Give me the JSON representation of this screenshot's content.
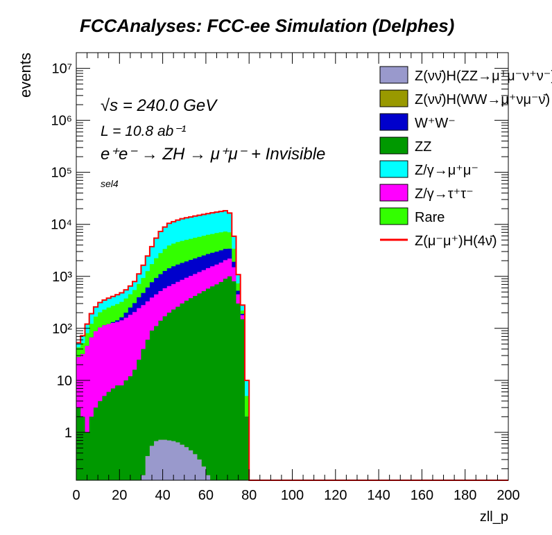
{
  "chart_data": {
    "type": "area",
    "title": "FCCAnalyses: FCC-ee Simulation (Delphes)",
    "xlabel": "zll_p",
    "ylabel": "events",
    "xlim": [
      0,
      200
    ],
    "ylim_log": [
      0.12,
      20000000
    ],
    "log_y": true,
    "x_ticks": [
      "0",
      "20",
      "40",
      "60",
      "80",
      "100",
      "120",
      "140",
      "160",
      "180",
      "200"
    ],
    "y_ticks": [
      "1",
      "10",
      "10²",
      "10³",
      "10⁴",
      "10⁵",
      "10⁶",
      "10⁷"
    ],
    "annotations": {
      "sqrt_s": "√s = 240.0 GeV",
      "lumi": "L = 10.8 ab⁻¹",
      "process": "e⁺e⁻ → ZH → μ⁺μ⁻ + Invisible",
      "selection": "sel4"
    },
    "x": [
      0,
      2,
      4,
      6,
      8,
      10,
      12,
      14,
      16,
      18,
      20,
      22,
      24,
      26,
      28,
      30,
      32,
      34,
      36,
      38,
      40,
      42,
      44,
      46,
      48,
      50,
      52,
      54,
      56,
      58,
      60,
      62,
      64,
      66,
      68,
      70,
      72,
      74,
      76,
      78,
      80,
      200
    ],
    "series_stack_order": "bottom to top",
    "series": [
      {
        "name": "Z(νν̄)H(ZZ→μ⁺μ⁻ν⁺ν⁻)",
        "color": "#9999cc",
        "values": [
          0,
          0,
          0,
          0,
          0,
          0,
          0,
          0,
          0,
          0,
          0,
          0,
          0,
          0,
          0,
          0.15,
          0.35,
          0.55,
          0.68,
          0.72,
          0.72,
          0.7,
          0.68,
          0.64,
          0.58,
          0.52,
          0.45,
          0.38,
          0.3,
          0.22,
          0.15,
          0,
          0,
          0,
          0,
          0,
          0,
          0,
          0,
          0,
          0,
          0
        ]
      },
      {
        "name": "Z(νν̄)H(WW→μ⁺νμ⁻ν̄)",
        "color": "#999900",
        "values": [
          0,
          0,
          0,
          0,
          0,
          0,
          0,
          0,
          0,
          0,
          0,
          0,
          0,
          0,
          0,
          0,
          0,
          0,
          0,
          0,
          0,
          0,
          0,
          0,
          0,
          0,
          0,
          0,
          0,
          0,
          0,
          0,
          0,
          0,
          0,
          0,
          0,
          0,
          0,
          0,
          0,
          0
        ]
      },
      {
        "name": "ZZ",
        "color": "#009900",
        "values": [
          3,
          2,
          1,
          2,
          3,
          4,
          5,
          6,
          7,
          8,
          8,
          10,
          12,
          16,
          25,
          40,
          60,
          90,
          110,
          140,
          170,
          200,
          230,
          260,
          300,
          340,
          380,
          420,
          470,
          520,
          580,
          640,
          700,
          780,
          900,
          1000,
          800,
          300,
          150,
          2,
          0,
          0
        ]
      },
      {
        "name": "Z/γ→τ⁺τ⁻",
        "color": "#ff00ff",
        "values": [
          25,
          30,
          45,
          65,
          85,
          100,
          110,
          115,
          120,
          125,
          135,
          150,
          170,
          190,
          220,
          240,
          270,
          300,
          340,
          380,
          420,
          450,
          480,
          520,
          560,
          600,
          640,
          690,
          740,
          800,
          860,
          920,
          990,
          1060,
          1150,
          1200,
          700,
          150,
          30,
          0,
          0,
          0
        ]
      },
      {
        "name": "W⁺W⁻",
        "color": "#0000cc",
        "values": [
          0,
          0,
          0,
          0,
          0,
          0,
          0,
          0,
          5,
          10,
          20,
          40,
          70,
          100,
          150,
          200,
          280,
          380,
          480,
          580,
          680,
          780,
          850,
          900,
          950,
          1000,
          1050,
          1100,
          1150,
          1200,
          1250,
          1280,
          1300,
          1320,
          1330,
          1200,
          400,
          80,
          10,
          0,
          0,
          0
        ]
      },
      {
        "name": "Rare",
        "color": "#33ff00",
        "values": [
          15,
          20,
          35,
          55,
          80,
          100,
          115,
          130,
          140,
          150,
          160,
          175,
          200,
          240,
          320,
          450,
          650,
          950,
          1300,
          1700,
          2100,
          2500,
          2700,
          2900,
          3000,
          3100,
          3200,
          3300,
          3400,
          3500,
          3600,
          3700,
          3800,
          3850,
          3900,
          3600,
          1500,
          200,
          30,
          3,
          0,
          0
        ]
      },
      {
        "name": "Z/γ→μ⁺μ⁻",
        "color": "#00ffff",
        "values": [
          10,
          20,
          40,
          70,
          90,
          110,
          120,
          130,
          140,
          150,
          160,
          175,
          200,
          250,
          400,
          700,
          1200,
          2000,
          3200,
          4500,
          5500,
          6500,
          7000,
          7500,
          8000,
          8300,
          8600,
          8900,
          9200,
          9500,
          9800,
          10100,
          10400,
          10700,
          11000,
          9500,
          2500,
          350,
          60,
          5,
          0,
          0
        ]
      },
      {
        "name": "Z(μ⁻μ⁺)H(4ν̄)",
        "color": "#ff0000",
        "line_only": true,
        "values": [
          0.12,
          0.12,
          0.12,
          0.12,
          0.12,
          0.12,
          0.12,
          0.12,
          0.12,
          0.12,
          0.12,
          0.12,
          0.12,
          0.12,
          0.12,
          0.12,
          0.12,
          0.12,
          0.12,
          0.12,
          0.12,
          0.12,
          0.12,
          0.12,
          0.12,
          0.12,
          0.12,
          0.12,
          0.12,
          0.12,
          0.12,
          0.12,
          0.12,
          0.12,
          0.12,
          0.12,
          0.12,
          0.12,
          0.12,
          0.12,
          0.12,
          0.12
        ]
      }
    ],
    "legend_placement": "top-right",
    "legend": [
      {
        "label": "Z(νν̄)H(ZZ→μ⁺μ⁻ν⁺ν⁻)",
        "color": "#9999cc",
        "kind": "box"
      },
      {
        "label": "Z(νν̄)H(WW→μ⁺νμ⁻ν̄)",
        "color": "#999900",
        "kind": "box"
      },
      {
        "label": "W⁺W⁻",
        "color": "#0000cc",
        "kind": "box"
      },
      {
        "label": "ZZ",
        "color": "#009900",
        "kind": "box"
      },
      {
        "label": "Z/γ→μ⁺μ⁻",
        "color": "#00ffff",
        "kind": "box"
      },
      {
        "label": "Z/γ→τ⁺τ⁻",
        "color": "#ff00ff",
        "kind": "box"
      },
      {
        "label": "Rare",
        "color": "#33ff00",
        "kind": "box"
      },
      {
        "label": "Z(μ⁻μ⁺)H(4ν̄)",
        "color": "#ff0000",
        "kind": "line"
      }
    ]
  }
}
